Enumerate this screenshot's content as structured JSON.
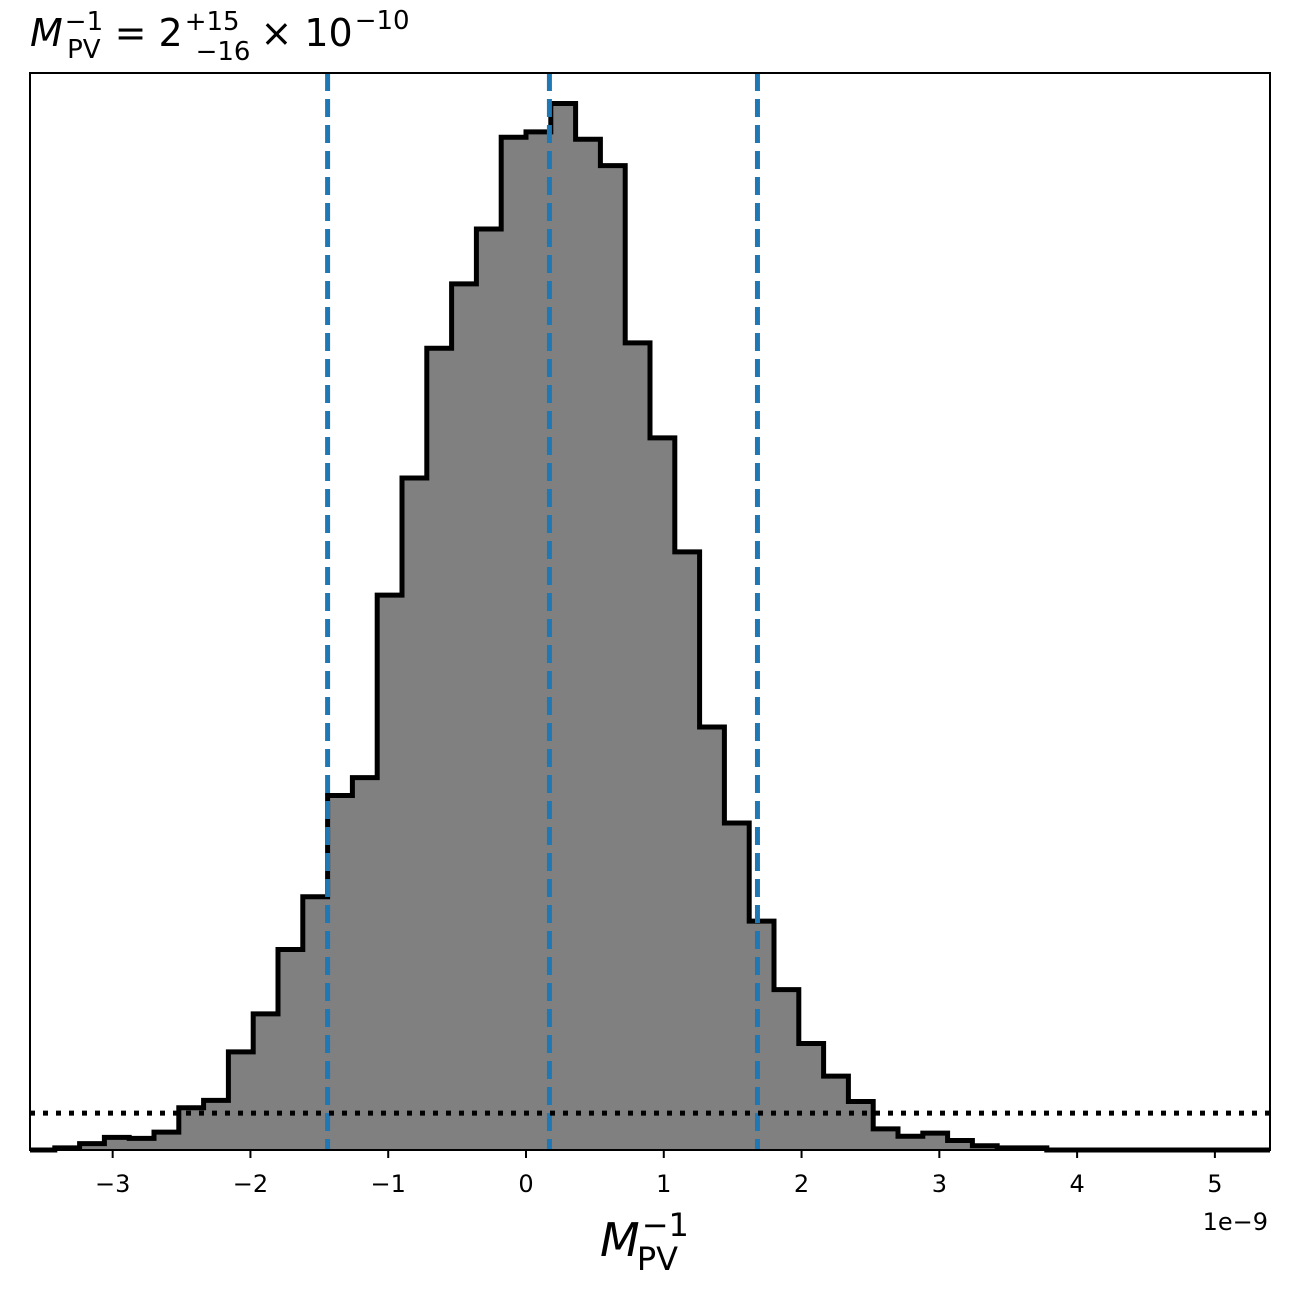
{
  "chart_data": {
    "type": "histogram",
    "title": {
      "base": "M",
      "base_sup": "−1",
      "base_sub": "PV",
      "equals": "= 2",
      "err_plus": "+15",
      "err_minus": "−16",
      "times": "× 10",
      "exp": "−10"
    },
    "xlabel": {
      "base": "M",
      "sup": "−1",
      "sub": "PV"
    },
    "offset_text": "1e−9",
    "xlim": [
      -3.6,
      5.4
    ],
    "ylim": [
      0,
      1.0
    ],
    "x_ticks": [
      -3,
      -2,
      -1,
      0,
      1,
      2,
      3,
      4,
      5
    ],
    "x_tick_labels": [
      "−3",
      "−2",
      "−1",
      "0",
      "1",
      "2",
      "3",
      "4",
      "5"
    ],
    "y_ticks_visible": false,
    "grid": false,
    "bin_edges": [
      -3.6,
      -3.42,
      -3.24,
      -3.06,
      -2.88,
      -2.7,
      -2.52,
      -2.34,
      -2.16,
      -1.98,
      -1.8,
      -1.62,
      -1.44,
      -1.26,
      -1.08,
      -0.9,
      -0.72,
      -0.54,
      -0.36,
      -0.18,
      0.0,
      0.18,
      0.36,
      0.54,
      0.72,
      0.9,
      1.08,
      1.26,
      1.44,
      1.62,
      1.8,
      1.98,
      2.16,
      2.34,
      2.52,
      2.7,
      2.88,
      3.06,
      3.24,
      3.42,
      3.6,
      3.78,
      3.96,
      4.14,
      4.32,
      4.5,
      4.68,
      4.86,
      5.04,
      5.22,
      5.4
    ],
    "counts": [
      0.0,
      0.002,
      0.006,
      0.012,
      0.011,
      0.017,
      0.04,
      0.047,
      0.093,
      0.129,
      0.19,
      0.24,
      0.336,
      0.353,
      0.526,
      0.637,
      0.76,
      0.821,
      0.873,
      0.96,
      0.965,
      0.992,
      0.958,
      0.933,
      0.765,
      0.675,
      0.567,
      0.401,
      0.31,
      0.217,
      0.152,
      0.101,
      0.07,
      0.046,
      0.02,
      0.013,
      0.016,
      0.009,
      0.004,
      0.002,
      0.002,
      0.0,
      0.0,
      0.0,
      0.0,
      0.0,
      0.0,
      0.0,
      0.0,
      0.0
    ],
    "fill_color": "#808080",
    "edge_color": "#000000",
    "quantile_lines": [
      -1.44,
      0.17,
      1.68
    ],
    "quantile_color": "#1f77b4",
    "reference_level": 0.035
  }
}
